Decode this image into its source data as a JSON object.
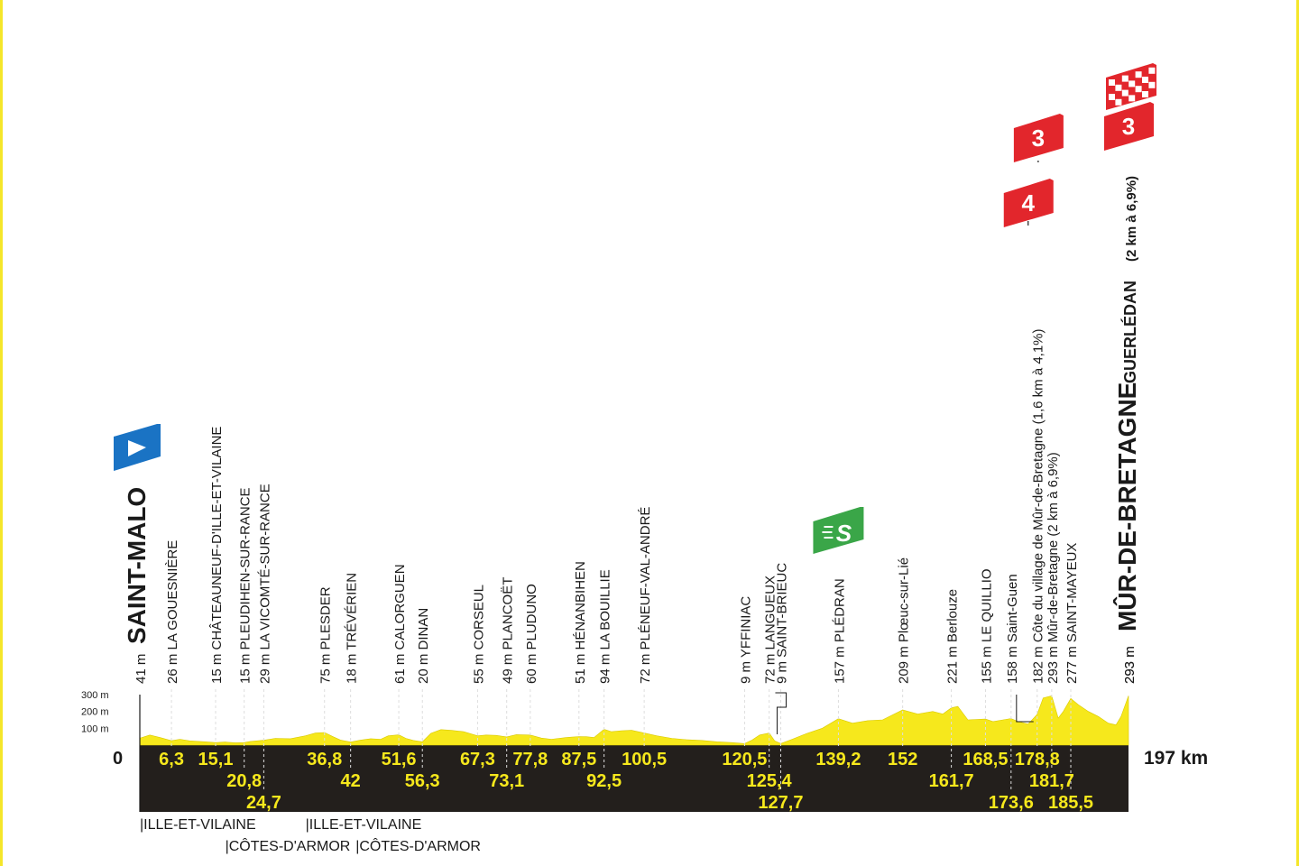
{
  "chart_data": {
    "type": "area",
    "title": "",
    "xlabel": "",
    "ylabel": "",
    "xlim": [
      0,
      197
    ],
    "ylim": [
      0,
      300
    ],
    "y_ticks": [
      "300 m",
      "200 m",
      "100 m"
    ],
    "x_start_label": "0",
    "x_end_label": "197 km",
    "fill_color": "#f6e81c",
    "band_color": "#231f1c",
    "profile": [
      [
        0,
        41
      ],
      [
        2,
        60
      ],
      [
        4,
        45
      ],
      [
        6.3,
        26
      ],
      [
        8,
        35
      ],
      [
        10,
        25
      ],
      [
        13,
        20
      ],
      [
        15.1,
        15
      ],
      [
        17,
        18
      ],
      [
        19,
        14
      ],
      [
        20.8,
        15
      ],
      [
        22,
        22
      ],
      [
        24.7,
        29
      ],
      [
        27,
        40
      ],
      [
        30,
        38
      ],
      [
        33,
        55
      ],
      [
        35,
        72
      ],
      [
        36.8,
        75
      ],
      [
        38.5,
        50
      ],
      [
        40,
        30
      ],
      [
        42,
        18
      ],
      [
        44,
        30
      ],
      [
        46,
        38
      ],
      [
        48,
        35
      ],
      [
        49.5,
        55
      ],
      [
        51.6,
        61
      ],
      [
        53,
        40
      ],
      [
        54.5,
        28
      ],
      [
        56.3,
        20
      ],
      [
        58,
        70
      ],
      [
        60,
        92
      ],
      [
        62,
        88
      ],
      [
        64.5,
        80
      ],
      [
        67.3,
        55
      ],
      [
        69,
        60
      ],
      [
        71,
        58
      ],
      [
        73.1,
        49
      ],
      [
        75,
        62
      ],
      [
        77.8,
        60
      ],
      [
        80,
        42
      ],
      [
        82,
        35
      ],
      [
        85,
        45
      ],
      [
        87.5,
        51
      ],
      [
        89,
        50
      ],
      [
        90.5,
        45
      ],
      [
        92.5,
        94
      ],
      [
        94,
        80
      ],
      [
        96,
        85
      ],
      [
        98,
        88
      ],
      [
        100.5,
        72
      ],
      [
        103,
        55
      ],
      [
        106,
        40
      ],
      [
        109,
        32
      ],
      [
        112,
        28
      ],
      [
        115,
        20
      ],
      [
        118,
        15
      ],
      [
        120.5,
        9
      ],
      [
        122,
        30
      ],
      [
        123.5,
        60
      ],
      [
        125.4,
        72
      ],
      [
        126.5,
        25
      ],
      [
        127.7,
        9
      ],
      [
        130,
        35
      ],
      [
        133,
        70
      ],
      [
        136,
        100
      ],
      [
        139.2,
        157
      ],
      [
        142,
        130
      ],
      [
        145,
        145
      ],
      [
        148,
        150
      ],
      [
        152,
        209
      ],
      [
        155,
        185
      ],
      [
        158,
        200
      ],
      [
        160,
        185
      ],
      [
        161.7,
        221
      ],
      [
        163,
        230
      ],
      [
        165,
        150
      ],
      [
        168.5,
        155
      ],
      [
        170,
        140
      ],
      [
        172,
        150
      ],
      [
        173.6,
        158
      ],
      [
        175,
        140
      ],
      [
        177,
        125
      ],
      [
        178.8,
        182
      ],
      [
        180,
        280
      ],
      [
        181.7,
        293
      ],
      [
        183,
        160
      ],
      [
        184,
        200
      ],
      [
        185.5,
        277
      ],
      [
        187,
        240
      ],
      [
        189,
        200
      ],
      [
        191,
        170
      ],
      [
        193,
        130
      ],
      [
        194.5,
        120
      ],
      [
        195.5,
        170
      ],
      [
        197,
        293
      ]
    ],
    "points": [
      {
        "km": 0,
        "label": "41 m",
        "name": "SAINT-MALO",
        "kind": "start"
      },
      {
        "km": 6.3,
        "label": "6,3",
        "name": "26 m LA GOUESNIÈRE"
      },
      {
        "km": 15.1,
        "label": "15,1",
        "name": "15 m CHÂTEAUNEUF-D'ILLE-ET-VILAINE"
      },
      {
        "km": 20.8,
        "label": "20,8",
        "name": "15 m PLEUDIHEN-SUR-RANCE"
      },
      {
        "km": 24.7,
        "label": "24,7",
        "name": "29 m LA VICOMTÉ-SUR-RANCE"
      },
      {
        "km": 36.8,
        "label": "36,8",
        "name": "75 m PLESDER"
      },
      {
        "km": 42,
        "label": "42",
        "name": "18 m TRÉVÉRIEN"
      },
      {
        "km": 51.6,
        "label": "51,6",
        "name": "61 m CALORGUEN"
      },
      {
        "km": 56.3,
        "label": "56,3",
        "name": "20 m DINAN"
      },
      {
        "km": 67.3,
        "label": "67,3",
        "name": "55 m CORSEUL"
      },
      {
        "km": 73.1,
        "label": "73,1",
        "name": "49 m PLANCOËT"
      },
      {
        "km": 77.8,
        "label": "77,8",
        "name": "60 m PLUDUNO"
      },
      {
        "km": 87.5,
        "label": "87,5",
        "name": "51 m HÉNANBIHEN"
      },
      {
        "km": 92.5,
        "label": "92,5",
        "name": "94 m LA BOUILLIE"
      },
      {
        "km": 100.5,
        "label": "100,5",
        "name": "72 m PLÉNEUF-VAL-ANDRÉ"
      },
      {
        "km": 120.5,
        "label": "120,5",
        "name": "9 m YFFINIAC"
      },
      {
        "km": 125.4,
        "label": "125,4",
        "name": "72 m LANGUEUX"
      },
      {
        "km": 127.7,
        "label": "127,7",
        "name": "9 m SAINT-BRIEUC"
      },
      {
        "km": 139.2,
        "label": "139,2",
        "name": "157 m PLÉDRAN",
        "kind": "sprint"
      },
      {
        "km": 152,
        "label": "152",
        "name": "209 m Plœuc-sur-Lié"
      },
      {
        "km": 161.7,
        "label": "161,7",
        "name": "221 m Berlouze"
      },
      {
        "km": 168.5,
        "label": "168,5",
        "name": "155 m LE QUILLIO"
      },
      {
        "km": 173.6,
        "label": "173,6",
        "name": "158 m Saint-Guen"
      },
      {
        "km": 178.8,
        "label": "178,8",
        "name": "182 m Côte du village de Mûr-de-Bretagne (1,6 km à 4,1%)",
        "kind": "climb",
        "category": "4"
      },
      {
        "km": 181.7,
        "label": "181,7",
        "name": "293 m Mûr-de-Bretagne (2 km à 6,9%)",
        "kind": "climb",
        "category": "3"
      },
      {
        "km": 185.5,
        "label": "185,5",
        "name": "277 m SAINT-MAYEUX"
      },
      {
        "km": 197,
        "label": "",
        "name": "293 m",
        "kind": "finish",
        "category": "3"
      }
    ],
    "finish_title": "MÛR-DE-BRETAGNE",
    "finish_sub": "GUERLÉDAN",
    "finish_detail": "(2 km à 6,9%)",
    "sprint_icon": "S",
    "departments": [
      {
        "text": "|ILLE-ET-VILAINE",
        "row": 0,
        "km": 0
      },
      {
        "text": "|ILLE-ET-VILAINE",
        "row": 0,
        "km": 33
      },
      {
        "text": "|CÔTES-D'ARMOR",
        "row": 1,
        "km": 17
      },
      {
        "text": "|CÔTES-D'ARMOR",
        "row": 1,
        "km": 43
      }
    ]
  }
}
